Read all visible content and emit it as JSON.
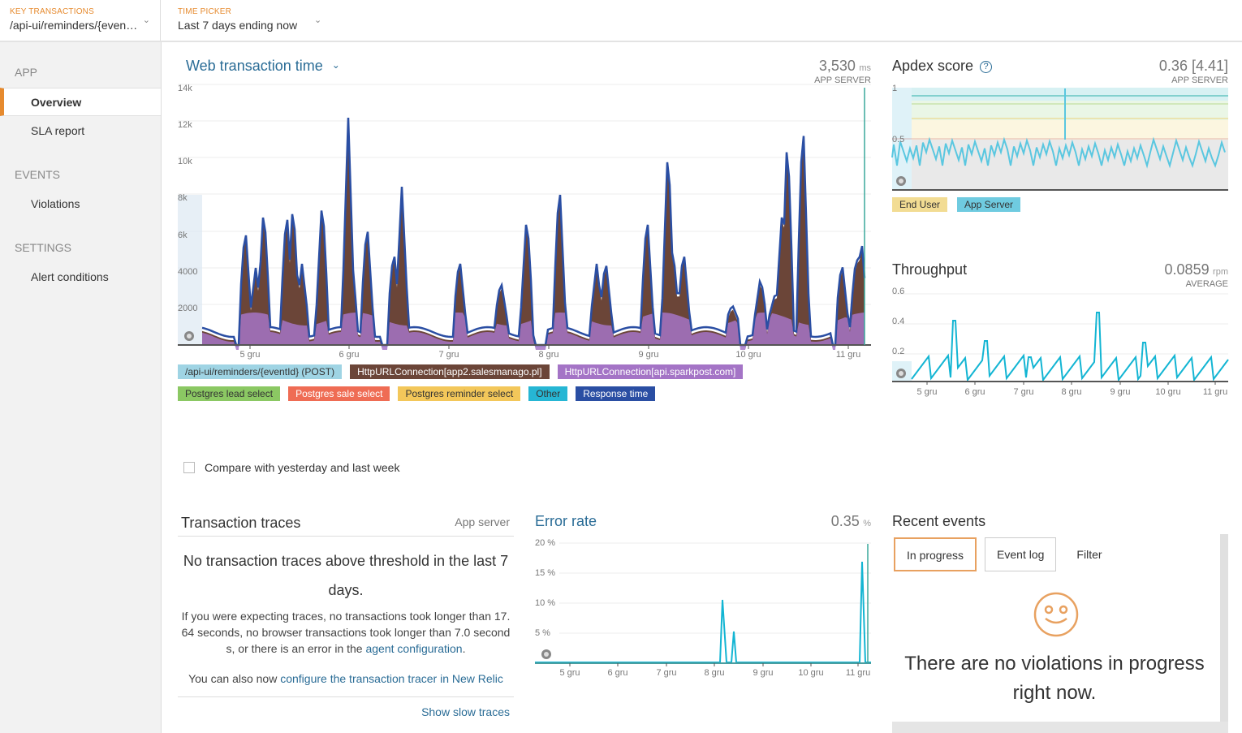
{
  "topbar": {
    "key_transactions": {
      "label": "KEY TRANSACTIONS",
      "value": "/api-ui/reminders/{eventId}"
    },
    "time_picker": {
      "label": "TIME PICKER",
      "value": "Last 7 days ending now"
    }
  },
  "sidebar": {
    "sections": [
      {
        "title": "APP",
        "items": [
          "Overview",
          "SLA report"
        ]
      },
      {
        "title": "EVENTS",
        "items": [
          "Violations"
        ]
      },
      {
        "title": "SETTINGS",
        "items": [
          "Alert conditions"
        ]
      }
    ],
    "active_item": "Overview"
  },
  "web_transaction_time": {
    "title": "Web transaction time",
    "value": "3,530",
    "unit": "ms",
    "label": "APP SERVER",
    "y_ticks": [
      "14k",
      "12k",
      "10k",
      "8k",
      "6k",
      "4000",
      "2000"
    ],
    "x_ticks": [
      "5 gru",
      "6 gru",
      "7 gru",
      "8 gru",
      "9 gru",
      "10 gru",
      "11 gru"
    ],
    "legend": [
      {
        "label": "/api-ui/reminders/{eventId} (POST)",
        "color": "#9fd4e4",
        "text": "#333"
      },
      {
        "label": "HttpURLConnection[app2.salesmanago.pl]",
        "color": "#6b4538",
        "text": "#fff"
      },
      {
        "label": "HttpURLConnection[api.sparkpost.com]",
        "color": "#a474c6",
        "text": "#fff"
      },
      {
        "label": "Postgres lead select",
        "color": "#8bc863",
        "text": "#333"
      },
      {
        "label": "Postgres sale select",
        "color": "#ef6c54",
        "text": "#fff"
      },
      {
        "label": "Postgres reminder select",
        "color": "#f3c75a",
        "text": "#333"
      },
      {
        "label": "Other",
        "color": "#26b6d4",
        "text": "#333"
      },
      {
        "label": "Response time",
        "color": "#2a4ea3",
        "text": "#fff"
      }
    ]
  },
  "apdex": {
    "title": "Apdex score",
    "value": "0.36 [4.41]",
    "label": "APP SERVER",
    "y_ticks": [
      "1",
      "0.5"
    ],
    "legend": [
      {
        "label": "End User",
        "color": "#f2dc93"
      },
      {
        "label": "App Server",
        "color": "#6fcbe0"
      }
    ]
  },
  "throughput": {
    "title": "Throughput",
    "value": "0.0859",
    "unit": "rpm",
    "label": "AVERAGE",
    "y_ticks": [
      "0.6",
      "0.4",
      "0.2"
    ],
    "x_ticks": [
      "5 gru",
      "6 gru",
      "7 gru",
      "8 gru",
      "9 gru",
      "10 gru",
      "11 gru"
    ]
  },
  "compare": {
    "label": "Compare with yesterday and last week",
    "checked": false
  },
  "transaction_traces": {
    "title": "Transaction traces",
    "scope": "App server",
    "main": "No transaction traces above threshold in the last 7 days.",
    "sub_pre": "If you were expecting traces, no transactions took longer than 17.64 seconds, no browser transactions took longer than 7.0 seconds, or there is an error in the ",
    "sub_link": "agent configuration",
    "sub_post": ".",
    "also_pre": "You can also now ",
    "also_link": "configure the transaction tracer in New Relic",
    "show_slow": "Show slow traces"
  },
  "error_rate": {
    "title": "Error rate",
    "value": "0.35",
    "unit": "%",
    "y_ticks": [
      "20 %",
      "15 %",
      "10 %",
      "5 %"
    ],
    "x_ticks": [
      "5 gru",
      "6 gru",
      "7 gru",
      "8 gru",
      "9 gru",
      "10 gru",
      "11 gru"
    ]
  },
  "recent_events": {
    "title": "Recent events",
    "tabs": [
      "In progress",
      "Event log",
      "Filter"
    ],
    "active_tab": "In progress",
    "message": "There are no violations in progress right now."
  },
  "colors": {
    "accent": "#e68a2e",
    "link": "#2a6c96",
    "series": "#13b5d3"
  }
}
